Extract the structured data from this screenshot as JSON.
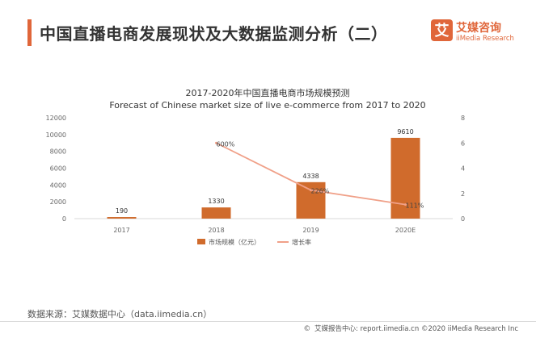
{
  "header": {
    "title": "中国直播电商发展现状及大数据监测分析（二）",
    "accent_color": "#e0663a"
  },
  "logo": {
    "name_cn": "艾媒咨询",
    "name_en": "iiMedia Research",
    "mark": "艾",
    "color": "#e0663a"
  },
  "chart_data": {
    "type": "bar",
    "title": "2017-2020年中国直播电商市场规模预测",
    "subtitle": "Forecast of Chinese market size of live e-commerce from 2017 to 2020",
    "categories": [
      "2017",
      "2018",
      "2019",
      "2020E"
    ],
    "series": [
      {
        "name": "市场规模（亿元）",
        "type": "bar",
        "axis": "left",
        "color": "#d06b2c",
        "values": [
          190,
          1330,
          4338,
          9610
        ],
        "labels": [
          "190",
          "1330",
          "4338",
          "9610"
        ]
      },
      {
        "name": "增长率",
        "type": "line",
        "axis": "right",
        "color": "#f0a088",
        "values": [
          null,
          6.0,
          2.26,
          1.11
        ],
        "labels": [
          "",
          "600%",
          "226%",
          "111%"
        ]
      }
    ],
    "y_left": {
      "min": 0,
      "max": 12000,
      "ticks": [
        "0",
        "2000",
        "4000",
        "6000",
        "8000",
        "10000",
        "12000"
      ]
    },
    "y_right": {
      "min": 0,
      "max": 8,
      "ticks": [
        "0",
        "2",
        "4",
        "6",
        "8"
      ]
    },
    "grid": false,
    "legend_position": "bottom"
  },
  "footer": {
    "source": "数据来源：艾媒数据中心（data.iimedia.cn）",
    "report_site": "艾媒报告中心: report.iimedia.cn",
    "copyright": "©2020  iiMedia Research  Inc",
    "copyright_icon": "copyright-icon"
  }
}
